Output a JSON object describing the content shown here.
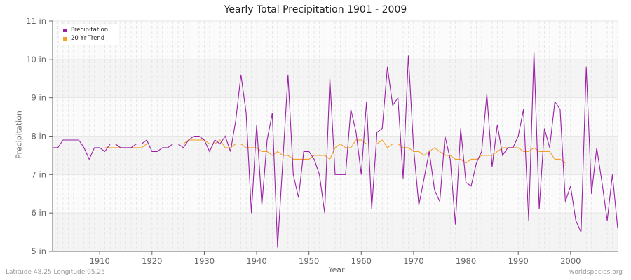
{
  "title": "Yearly Total Precipitation 1901 - 2009",
  "footer": {
    "location": "Latitude 48.25 Longitude 95.25",
    "source": "worldspecies.org"
  },
  "colors": {
    "precipitation": "#9b1fa6",
    "trend": "#f5a028",
    "band_gray": "#f4f4f4",
    "band_white": "#fbfbfb",
    "axis": "#666666"
  },
  "legend": {
    "items": [
      {
        "label": "Precipitation",
        "color": "#9b1fa6"
      },
      {
        "label": "20 Yr Trend",
        "color": "#f5a028"
      }
    ]
  },
  "chart_data": {
    "type": "line",
    "title": "Yearly Total Precipitation 1901 - 2009",
    "xlabel": "Year",
    "ylabel": "Precipitation",
    "xlim": [
      1901,
      2009
    ],
    "ylim": [
      5,
      11
    ],
    "x_ticks": [
      1910,
      1920,
      1930,
      1940,
      1950,
      1960,
      1970,
      1980,
      1990,
      2000
    ],
    "y_ticks": [
      "5 in",
      "6 in",
      "7 in",
      "8 in",
      "9 in",
      "10 in",
      "11 in"
    ],
    "grid": true,
    "legend_position": "top-left",
    "series": [
      {
        "name": "Precipitation",
        "start_year": 1901,
        "values": [
          7.7,
          7.7,
          7.9,
          7.9,
          7.9,
          7.9,
          7.7,
          7.4,
          7.7,
          7.7,
          7.6,
          7.8,
          7.8,
          7.7,
          7.7,
          7.7,
          7.8,
          7.8,
          7.9,
          7.6,
          7.6,
          7.7,
          7.7,
          7.8,
          7.8,
          7.7,
          7.9,
          8.0,
          8.0,
          7.9,
          7.6,
          7.9,
          7.8,
          8.0,
          7.6,
          8.4,
          9.6,
          8.6,
          6.0,
          8.3,
          6.2,
          7.9,
          8.6,
          5.1,
          7.35,
          9.6,
          7.0,
          6.4,
          7.6,
          7.6,
          7.4,
          7.0,
          6.0,
          9.5,
          7.0,
          7.0,
          7.0,
          8.7,
          8.1,
          7.0,
          8.9,
          6.1,
          8.1,
          8.2,
          9.8,
          8.8,
          9.0,
          6.9,
          10.1,
          7.7,
          6.2,
          6.9,
          7.6,
          6.6,
          6.3,
          8.0,
          7.4,
          5.7,
          8.2,
          6.8,
          6.7,
          7.3,
          7.6,
          9.1,
          7.2,
          8.3,
          7.5,
          7.7,
          7.7,
          8.0,
          8.7,
          5.8,
          10.2,
          6.1,
          8.2,
          7.7,
          8.9,
          8.7,
          6.3,
          6.7,
          5.8,
          5.5,
          9.8,
          6.5,
          7.7,
          6.8,
          5.8,
          7.0,
          5.6
        ]
      },
      {
        "name": "20 Yr Trend",
        "start_year": 1911,
        "values": [
          7.7,
          7.7,
          7.7,
          7.7,
          7.7,
          7.7,
          7.7,
          7.7,
          7.8,
          7.8,
          7.8,
          7.8,
          7.8,
          7.8,
          7.8,
          7.8,
          7.9,
          7.9,
          7.9,
          7.9,
          7.8,
          7.8,
          7.9,
          7.7,
          7.7,
          7.8,
          7.8,
          7.7,
          7.7,
          7.7,
          7.6,
          7.6,
          7.5,
          7.6,
          7.5,
          7.5,
          7.4,
          7.4,
          7.4,
          7.4,
          7.5,
          7.5,
          7.5,
          7.4,
          7.7,
          7.8,
          7.7,
          7.7,
          7.9,
          7.9,
          7.8,
          7.8,
          7.8,
          7.9,
          7.7,
          7.8,
          7.8,
          7.7,
          7.7,
          7.6,
          7.6,
          7.5,
          7.6,
          7.7,
          7.6,
          7.5,
          7.5,
          7.4,
          7.4,
          7.3,
          7.4,
          7.4,
          7.5,
          7.5,
          7.5,
          7.6,
          7.7,
          7.7,
          7.7,
          7.7,
          7.6,
          7.6,
          7.7,
          7.6,
          7.6,
          7.6,
          7.4,
          7.4,
          7.3
        ]
      }
    ]
  }
}
